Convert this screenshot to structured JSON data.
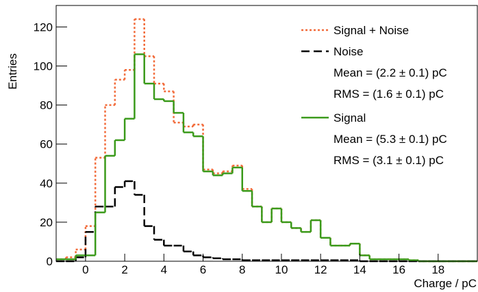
{
  "chart_data": {
    "type": "histogram",
    "xlabel": "Charge / pC",
    "ylabel": "Entries",
    "bins": [
      -1.5,
      -1,
      -0.5,
      0,
      0.5,
      1,
      1.5,
      2,
      2.5,
      3,
      3.5,
      4,
      4.5,
      5,
      5.5,
      6,
      6.5,
      7,
      7.5,
      8,
      8.5,
      9,
      9.5,
      10,
      10.5,
      11,
      11.5,
      12,
      12.5,
      13,
      13.5,
      14,
      14.5,
      15,
      15.5,
      16,
      16.5,
      17,
      17.5,
      18,
      18.5,
      19,
      19.5,
      20
    ],
    "series": [
      {
        "name": "Signal + Noise",
        "color": "#f26b3a",
        "line_style": "dotted",
        "values": [
          1,
          2,
          6,
          18,
          53,
          80,
          93,
          98,
          124,
          105,
          91,
          87,
          71,
          69,
          70,
          47,
          45,
          46,
          49,
          37,
          28,
          20,
          27,
          20,
          17,
          15,
          21,
          12,
          8,
          8,
          9,
          3,
          1,
          1,
          1,
          1,
          0.5,
          0,
          0,
          0,
          0,
          0,
          0
        ]
      },
      {
        "name": "Noise",
        "color": "#000000",
        "line_style": "dashed",
        "stats": [
          "Mean = (2.2 ± 0.1) pC",
          "RMS = (1.6 ± 0.1) pC"
        ],
        "values": [
          0,
          0,
          2,
          15,
          28,
          28,
          38,
          41,
          34,
          18,
          11,
          8,
          8,
          5,
          3,
          2,
          1.5,
          1,
          1,
          0.5,
          0.5,
          0.5,
          0.5,
          0.5,
          0.5,
          0.5,
          0.5,
          0.5,
          0.5,
          0.5,
          0.5,
          0,
          0,
          0,
          0,
          0,
          0,
          0,
          0,
          0,
          0,
          0,
          0
        ]
      },
      {
        "name": "Signal",
        "color": "#3a9a1a",
        "line_style": "solid",
        "stats": [
          "Mean = (5.3 ± 0.1) pC",
          "RMS = (3.1 ± 0.1) pC"
        ],
        "values": [
          1,
          1,
          3,
          3,
          25,
          54,
          62,
          73,
          106,
          91,
          83,
          82,
          76,
          66,
          64,
          46,
          44,
          45,
          48,
          36,
          28,
          20,
          27,
          20,
          17,
          15,
          21,
          12,
          8,
          8,
          9,
          3,
          1,
          1,
          1,
          1,
          0.5,
          0,
          0,
          0,
          0,
          0,
          0
        ]
      }
    ],
    "xlim": [
      -1.5,
      20
    ],
    "ylim": [
      0,
      131
    ],
    "xticks": [
      0,
      2,
      4,
      6,
      8,
      10,
      12,
      14,
      16,
      18
    ],
    "yticks": [
      0,
      20,
      40,
      60,
      80,
      100,
      120
    ],
    "legend": "upper right"
  }
}
